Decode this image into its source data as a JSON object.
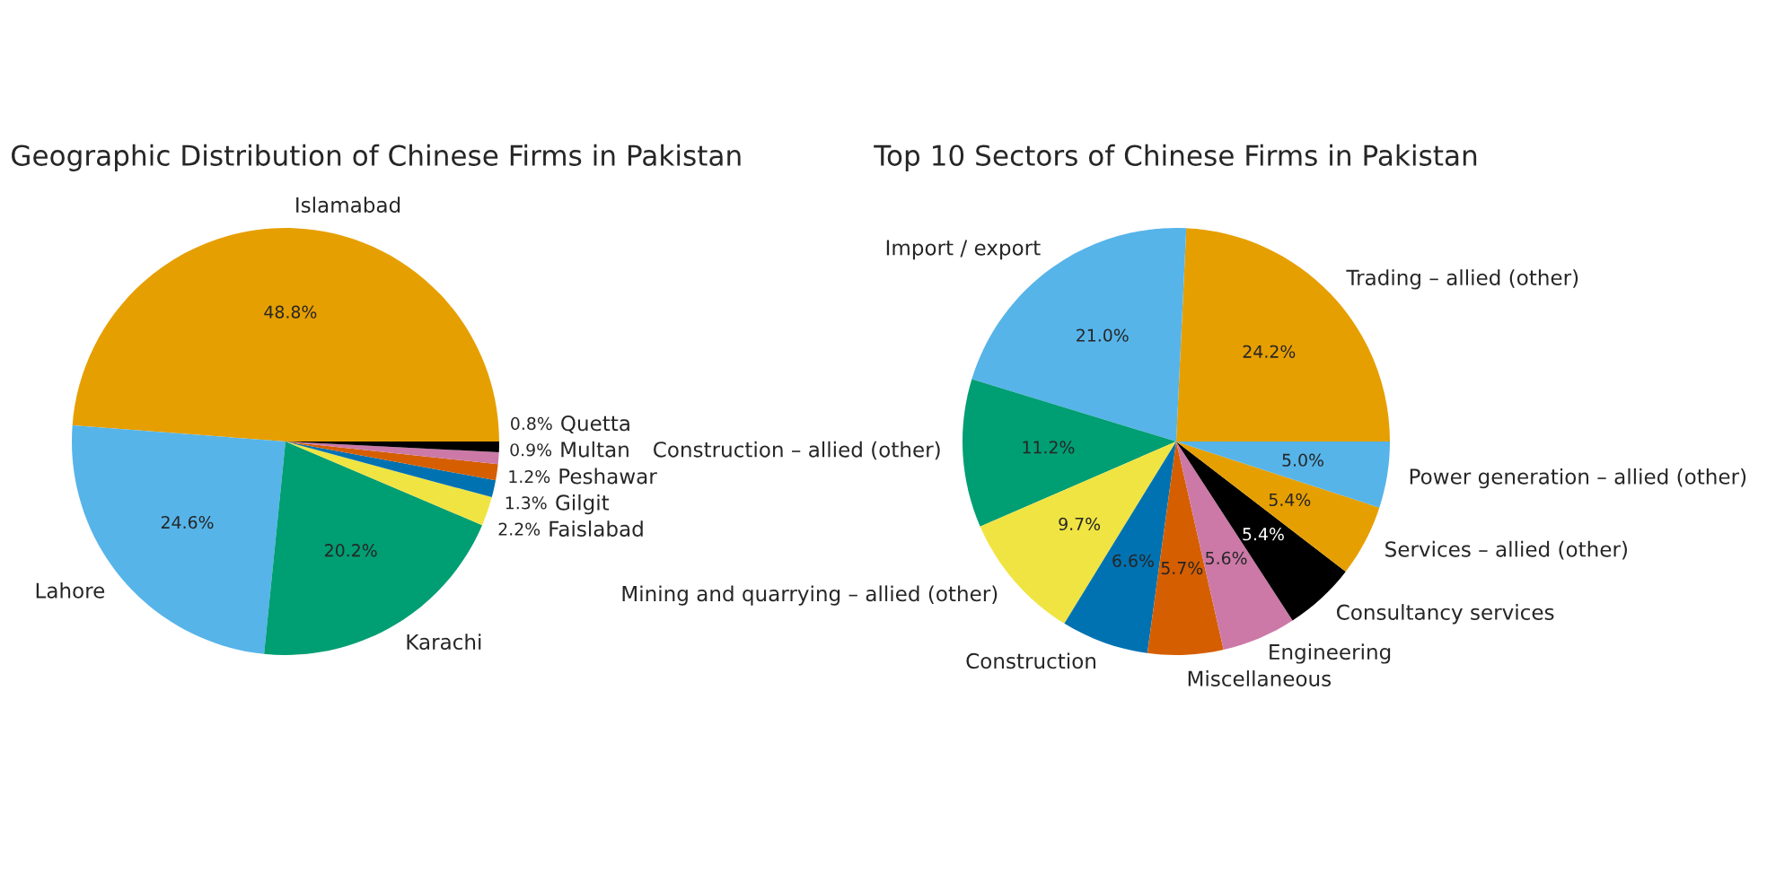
{
  "chart_data": [
    {
      "type": "pie",
      "title": "Geographic Distribution of Chinese Firms in Pakistan",
      "categories": [
        "Islamabad",
        "Lahore",
        "Karachi",
        "Faislabad",
        "Gilgit",
        "Peshawar",
        "Multan",
        "Quetta"
      ],
      "values": [
        48.8,
        24.6,
        20.2,
        2.2,
        1.3,
        1.2,
        0.9,
        0.8
      ],
      "colors": [
        "#e69f00",
        "#56b4e9",
        "#009e73",
        "#f0e442",
        "#0072b2",
        "#d55e00",
        "#cc79a7",
        "#000000"
      ],
      "value_labels": [
        "48.8%",
        "24.6%",
        "20.2%",
        "2.2%",
        "1.3%",
        "1.2%",
        "0.9%",
        "0.8%"
      ]
    },
    {
      "type": "pie",
      "title": "Top 10 Sectors of Chinese Firms in Pakistan",
      "categories": [
        "Trading – allied (other)",
        "Import / export",
        "Construction – allied (other)",
        "Mining and quarrying – allied (other)",
        "Construction",
        "Miscellaneous",
        "Engineering",
        "Consultancy services",
        "Services – allied (other)",
        "Power generation – allied (other)"
      ],
      "values": [
        24.2,
        21.0,
        11.2,
        9.7,
        6.6,
        5.7,
        5.6,
        5.4,
        5.4,
        5.0
      ],
      "colors": [
        "#e69f00",
        "#56b4e9",
        "#009e73",
        "#f0e442",
        "#0072b2",
        "#d55e00",
        "#cc79a7",
        "#000000",
        "#e69f00",
        "#56b4e9"
      ],
      "value_labels": [
        "24.2%",
        "21.0%",
        "11.2%",
        "9.7%",
        "6.6%",
        "5.7%",
        "5.6%",
        "5.4%",
        "5.4%",
        "5.0%"
      ]
    }
  ]
}
